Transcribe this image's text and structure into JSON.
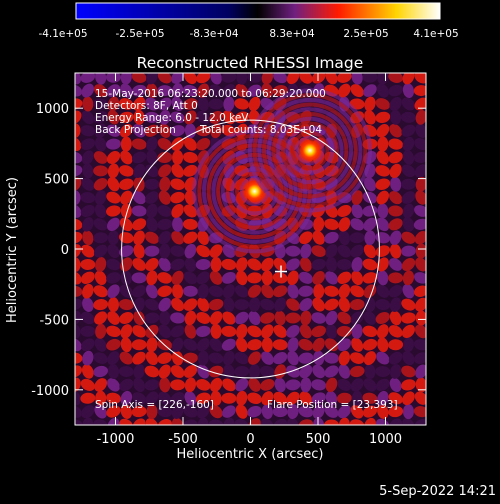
{
  "colorbar": {
    "ticks": [
      "-4.1e+05",
      "-2.5e+05",
      "-8.3e+04",
      "8.3e+04",
      "2.5e+05",
      "4.1e+05"
    ],
    "min": -410000,
    "max": 410000,
    "colormap": [
      "#0000ff",
      "#000000",
      "#6f1f80",
      "#ff1a00",
      "#ffd400",
      "#ffffff"
    ]
  },
  "plot": {
    "title": "Reconstructed RHESSI Image",
    "xlabel": "Heliocentric X (arcsec)",
    "ylabel": "Heliocentric Y (arcsec)",
    "xlim": [
      -1300,
      1300
    ],
    "ylim": [
      -1250,
      1250
    ],
    "xticks": [
      -1000,
      -500,
      0,
      500,
      1000
    ],
    "yticks": [
      -1000,
      -500,
      0,
      500,
      1000
    ],
    "annotations": {
      "line1": "15-May-2016 06:23:20.000 to 06:29:20.000",
      "line2": "Detectors: 8F, Att 0",
      "line3": "Energy Range: 6.0 - 12.0 keV",
      "line4a": "Back Projection",
      "line4b": "Total counts: 8.03E+04",
      "spin_axis": "Spin Axis = [226,-160]",
      "flare_position": "Flare Position = [23,393]"
    },
    "solar_disk_radius_arcsec": 955,
    "sources": [
      {
        "x": 30,
        "y": 410
      },
      {
        "x": 440,
        "y": 700
      }
    ],
    "spin_axis_marker": {
      "x": 226,
      "y": -160
    }
  },
  "timestamp": "5-Sep-2022 14:21"
}
